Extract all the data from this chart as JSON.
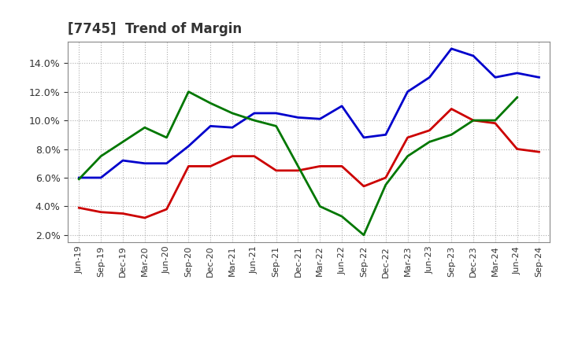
{
  "title": "[7745]  Trend of Margin",
  "x_labels": [
    "Jun-19",
    "Sep-19",
    "Dec-19",
    "Mar-20",
    "Jun-20",
    "Sep-20",
    "Dec-20",
    "Mar-21",
    "Jun-21",
    "Sep-21",
    "Dec-21",
    "Mar-22",
    "Jun-22",
    "Sep-22",
    "Dec-22",
    "Mar-23",
    "Jun-23",
    "Sep-23",
    "Dec-23",
    "Mar-24",
    "Jun-24",
    "Sep-24"
  ],
  "ordinary_income": [
    6.0,
    6.0,
    7.2,
    7.0,
    7.0,
    8.2,
    9.6,
    9.5,
    10.5,
    10.5,
    10.2,
    10.1,
    11.0,
    8.8,
    9.0,
    12.0,
    13.0,
    15.0,
    14.5,
    13.0,
    13.3,
    13.0
  ],
  "net_income": [
    3.9,
    3.6,
    3.5,
    3.2,
    3.8,
    6.8,
    6.8,
    7.5,
    7.5,
    6.5,
    6.5,
    6.8,
    6.8,
    5.4,
    6.0,
    8.8,
    9.3,
    10.8,
    10.0,
    9.8,
    8.0,
    7.8
  ],
  "operating_cashflow": [
    5.9,
    7.5,
    8.5,
    9.5,
    8.8,
    12.0,
    11.2,
    10.5,
    10.0,
    9.6,
    6.8,
    4.0,
    3.3,
    2.0,
    5.5,
    7.5,
    8.5,
    9.0,
    10.0,
    10.0,
    11.6,
    null
  ],
  "ylim": [
    1.5,
    15.5
  ],
  "yticks": [
    2.0,
    4.0,
    6.0,
    8.0,
    10.0,
    12.0,
    14.0
  ],
  "colors": {
    "ordinary_income": "#0000cc",
    "net_income": "#cc0000",
    "operating_cashflow": "#007700"
  },
  "background_color": "#ffffff",
  "grid_color": "#999999",
  "title_color": "#333333"
}
